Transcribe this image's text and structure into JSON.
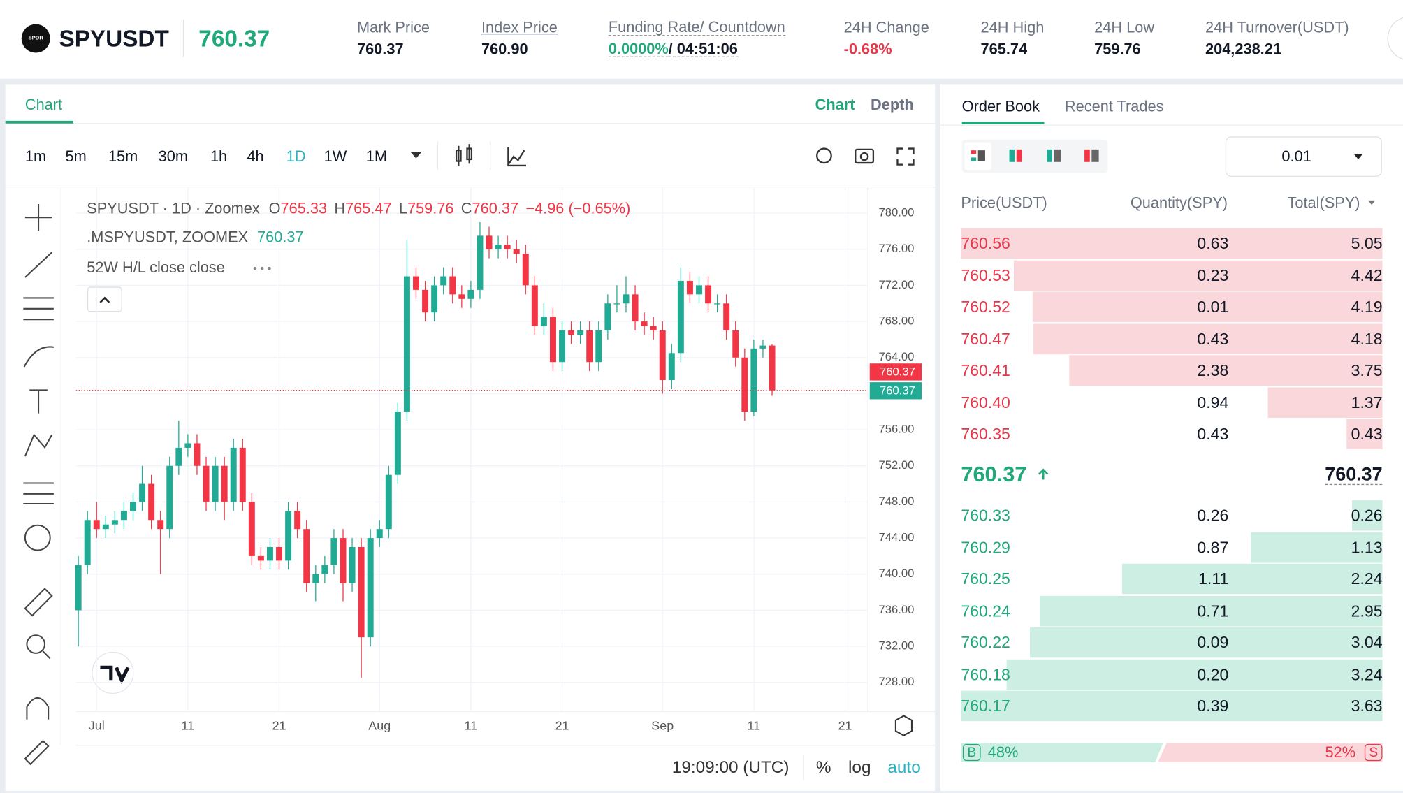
{
  "header": {
    "logo": "SPDR",
    "symbol": "SPYUSDT",
    "price": "760.37",
    "stats": [
      {
        "label": "Mark Price",
        "value": "760.37"
      },
      {
        "label": "Index Price",
        "value": "760.90"
      },
      {
        "label": "Funding Rate/ Countdown",
        "value": "0.0000%",
        "extra": "/ 04:51:06"
      },
      {
        "label": "24H Change",
        "value": "-0.68%"
      },
      {
        "label": "24H High",
        "value": "765.74"
      },
      {
        "label": "24H Low",
        "value": "759.76"
      },
      {
        "label": "24H Turnover(USDT)",
        "value": "204,238.21"
      }
    ]
  },
  "chart_panel": {
    "tab": "Chart",
    "views": [
      "Chart",
      "Depth"
    ],
    "intervals": [
      "1m",
      "5m",
      "15m",
      "30m",
      "1h",
      "4h",
      "1D",
      "1W",
      "1M"
    ],
    "active_interval": "1D",
    "legend": {
      "series": "SPYUSDT · 1D · Zoomex",
      "ohlc_labels": [
        "O",
        "H",
        "L",
        "C"
      ],
      "change": "−4.96 (−0.65%)",
      "mark_series": ".MSPYUSDT, ZOOMEX",
      "mark_value": "760.37",
      "indicator": "52W H/L close close"
    },
    "time": "19:09:00 (UTC)",
    "scale_options": [
      "%",
      "log",
      "auto"
    ]
  },
  "chart_data": {
    "type": "candlestick",
    "up_color": "#22ab94",
    "down_color": "#f23645",
    "grid": true,
    "xlim": [
      -0.25,
      86.5
    ],
    "xticks": [
      {
        "value": 2,
        "label": "Jul"
      },
      {
        "value": 12,
        "label": "11"
      },
      {
        "value": 22,
        "label": "21"
      },
      {
        "value": 33,
        "label": "Aug"
      },
      {
        "value": 43,
        "label": "11"
      },
      {
        "value": 53,
        "label": "21"
      },
      {
        "value": 64,
        "label": "Sep"
      },
      {
        "value": 74,
        "label": "11"
      },
      {
        "value": 84,
        "label": "21"
      }
    ],
    "ylim": [
      724.8,
      782.8
    ],
    "yticks": [
      {
        "value": 728,
        "label": "728.00"
      },
      {
        "value": 732,
        "label": "732.00"
      },
      {
        "value": 736,
        "label": "736.00"
      },
      {
        "value": 740,
        "label": "740.00"
      },
      {
        "value": 744,
        "label": "744.00"
      },
      {
        "value": 748,
        "label": "748.00"
      },
      {
        "value": 752,
        "label": "752.00"
      },
      {
        "value": 756,
        "label": "756.00"
      },
      {
        "value": 760,
        "label": "760.00"
      },
      {
        "value": 764,
        "label": "764.00"
      },
      {
        "value": 768,
        "label": "768.00"
      },
      {
        "value": 772,
        "label": "772.00"
      },
      {
        "value": 776,
        "label": "776.00"
      },
      {
        "value": 780,
        "label": "780.00"
      }
    ],
    "open": [
      736,
      741,
      746,
      745,
      745.5,
      746,
      747,
      748,
      750,
      746,
      745,
      752,
      754,
      754.5,
      752,
      748,
      752,
      748,
      754,
      748,
      742,
      741.5,
      743,
      741.5,
      747,
      745,
      739,
      740,
      741,
      744,
      739,
      743,
      733,
      744,
      745,
      751,
      758,
      773,
      771.5,
      769,
      772,
      773,
      771,
      770.5,
      771.5,
      777.5,
      776,
      776.5,
      776,
      775.5,
      772,
      767.5,
      768.5,
      763.5,
      767,
      766.5,
      767,
      763.5,
      767,
      770,
      770,
      771,
      768,
      767.5,
      767,
      761.5,
      764.5,
      772.5,
      771,
      772,
      770,
      770,
      767,
      764,
      758,
      765,
      765.33
    ],
    "high": [
      742,
      747,
      748,
      746.5,
      747,
      748,
      749,
      752,
      751,
      747,
      753,
      757,
      755.5,
      755.5,
      753,
      753,
      753,
      755,
      755,
      749,
      743,
      744,
      744,
      748,
      748,
      746,
      741,
      742,
      745,
      745,
      744,
      744,
      745,
      746,
      752,
      759,
      777,
      774,
      772.5,
      773,
      774,
      774,
      772,
      772.5,
      779,
      778.5,
      777.5,
      777.5,
      777,
      776.5,
      773,
      770,
      769.5,
      768,
      768,
      768,
      768,
      768,
      771,
      772,
      773,
      772,
      769,
      768.5,
      768,
      765.5,
      774,
      773.5,
      773,
      773,
      771,
      771,
      768,
      765,
      766,
      766,
      765.47
    ],
    "low": [
      732,
      740,
      744,
      744,
      744.5,
      745,
      746,
      747,
      745,
      740,
      744,
      751,
      753,
      751,
      747,
      747,
      746,
      747,
      747,
      741,
      740.5,
      740.5,
      740.5,
      740.5,
      744,
      738,
      737,
      739,
      740,
      737,
      738,
      728.5,
      732,
      743,
      744,
      750,
      757,
      770.5,
      768,
      768,
      771,
      770,
      769.5,
      769.5,
      770.5,
      775,
      775,
      775,
      774.5,
      771,
      766.5,
      766.5,
      762.5,
      762.5,
      765.5,
      765.5,
      762.5,
      762.5,
      766,
      769,
      769,
      767,
      766.5,
      766,
      760,
      760.5,
      763.5,
      770,
      770,
      769,
      769,
      766,
      763,
      757,
      757.5,
      764,
      759.76
    ],
    "close": [
      741,
      746,
      745,
      745.5,
      746,
      747,
      748,
      750,
      746,
      745,
      752,
      754,
      754.5,
      752,
      748,
      752,
      748,
      754,
      748,
      742,
      741.5,
      743,
      741.5,
      747,
      745,
      739,
      740,
      741,
      744,
      739,
      743,
      733,
      744,
      745,
      751,
      758,
      773,
      771.5,
      769,
      772,
      773,
      771,
      770.5,
      771.5,
      777.5,
      776,
      776.5,
      776,
      775.5,
      772,
      767.5,
      768.5,
      763.5,
      767,
      766.5,
      767,
      763.5,
      767,
      770,
      770,
      771,
      768,
      767.5,
      767,
      761.5,
      764.5,
      772.5,
      771,
      772,
      770,
      770,
      767,
      764,
      758,
      765,
      765.33,
      760.37
    ]
  },
  "order_book": {
    "tabs": [
      "Order Book",
      "Recent Trades"
    ],
    "precision": "0.01",
    "columns": [
      "Price(USDT)",
      "Quantity(SPY)",
      "Total(SPY)"
    ],
    "asks": [
      [
        "760.56",
        "0.63",
        "5.05"
      ],
      [
        "760.53",
        "0.23",
        "4.42"
      ],
      [
        "760.52",
        "0.01",
        "4.19"
      ],
      [
        "760.47",
        "0.43",
        "4.18"
      ],
      [
        "760.41",
        "2.38",
        "3.75"
      ],
      [
        "760.40",
        "0.94",
        "1.37"
      ],
      [
        "760.35",
        "0.43",
        "0.43"
      ]
    ],
    "last": "760.37",
    "mark": "760.37",
    "bids": [
      [
        "760.33",
        "0.26",
        "0.26"
      ],
      [
        "760.29",
        "0.87",
        "1.13"
      ],
      [
        "760.25",
        "1.11",
        "2.24"
      ],
      [
        "760.24",
        "0.71",
        "2.95"
      ],
      [
        "760.22",
        "0.09",
        "3.04"
      ],
      [
        "760.18",
        "0.20",
        "3.24"
      ],
      [
        "760.17",
        "0.39",
        "3.63"
      ]
    ],
    "buy_tag": "B",
    "buy_pct": "48%",
    "sell_pct": "52%",
    "sell_tag": "S"
  }
}
